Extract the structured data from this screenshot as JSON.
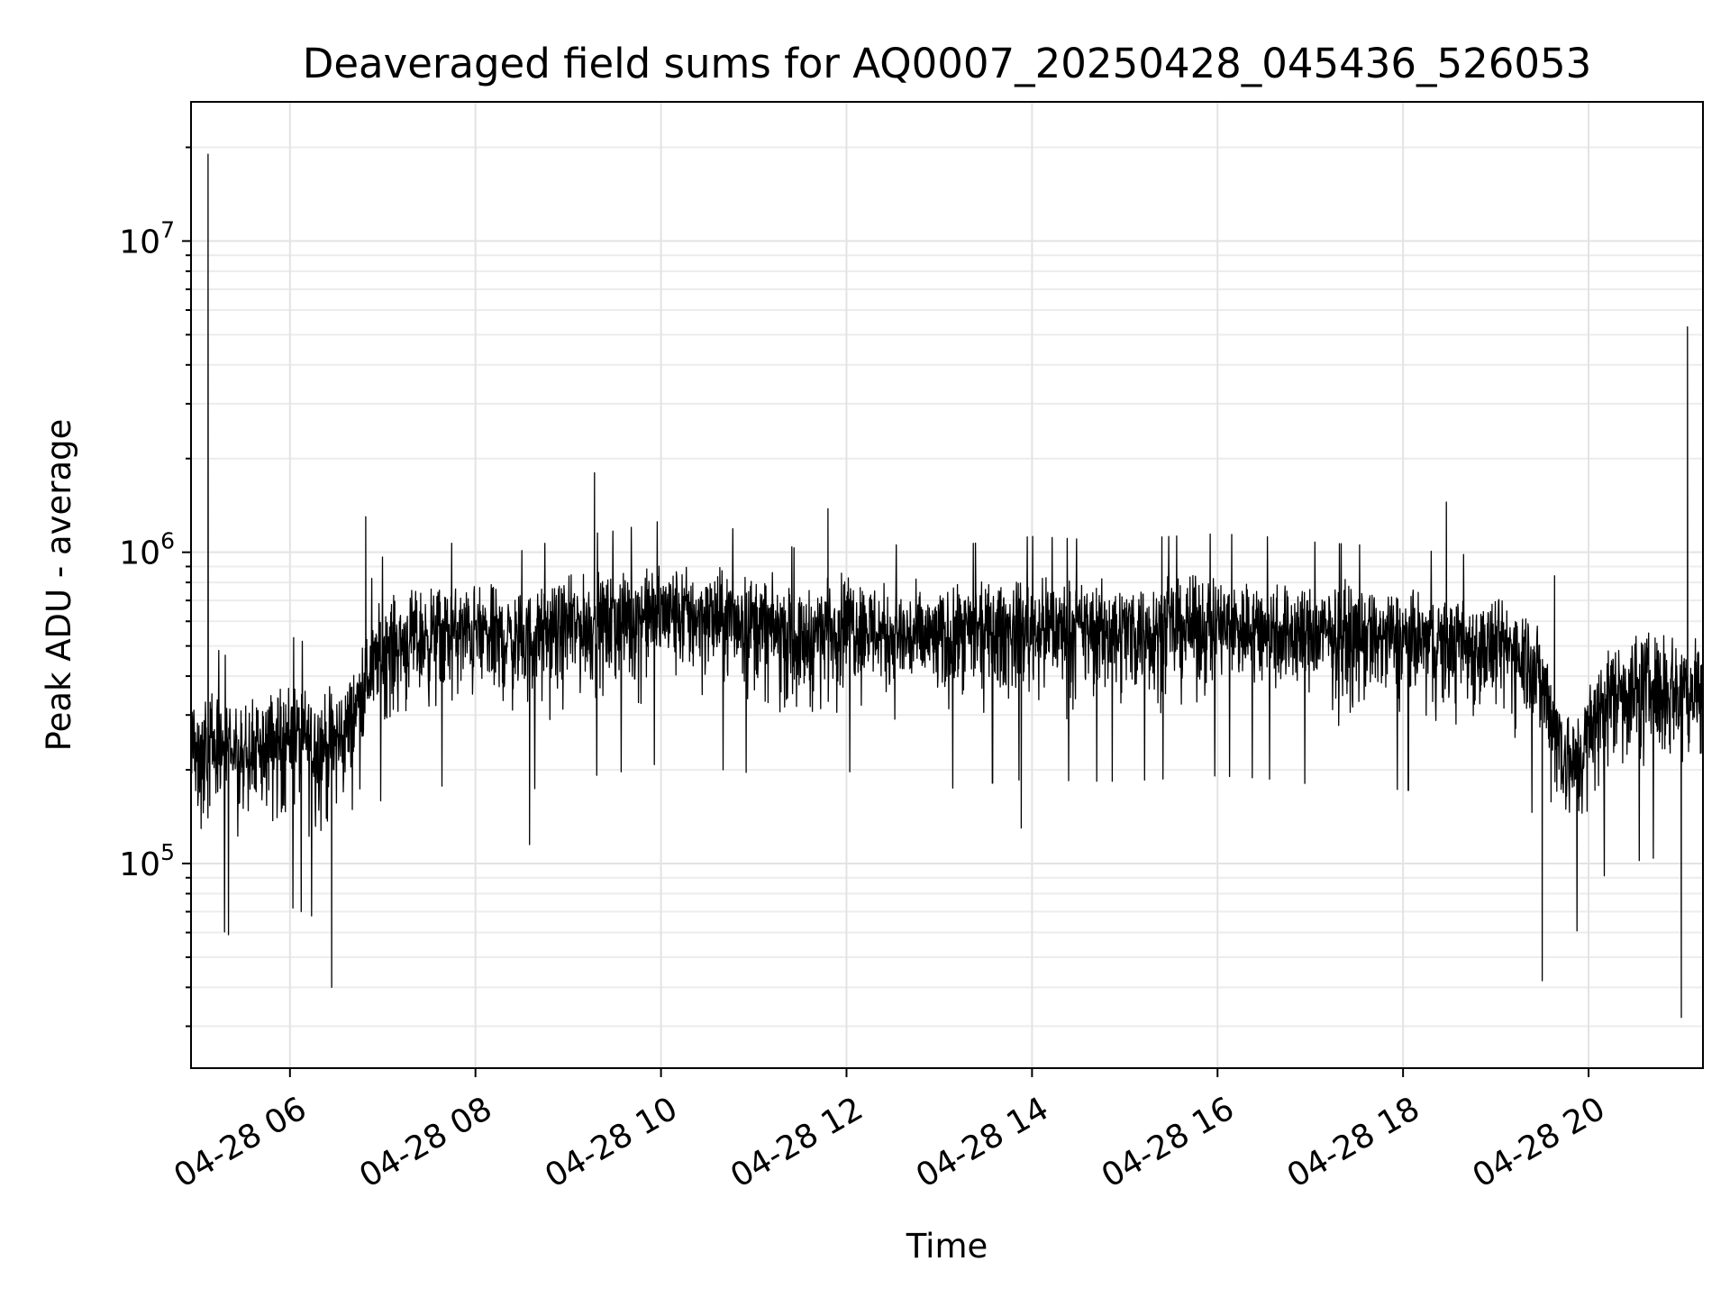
{
  "chart_data": {
    "type": "line",
    "title": "Deaveraged field sums for AQ0007_20250428_045436_526053",
    "xlabel": "Time",
    "ylabel": "Peak ADU - average",
    "x_range": [
      "2025-04-28 04:56",
      "2025-04-28 21:14"
    ],
    "y_scale": "log",
    "ylim": [
      22000,
      28000000
    ],
    "grid": true,
    "line_color": "#000000",
    "x_ticks": [
      {
        "t": "2025-04-28 06:00",
        "label": "04-28 06"
      },
      {
        "t": "2025-04-28 08:00",
        "label": "04-28 08"
      },
      {
        "t": "2025-04-28 10:00",
        "label": "04-28 10"
      },
      {
        "t": "2025-04-28 12:00",
        "label": "04-28 12"
      },
      {
        "t": "2025-04-28 14:00",
        "label": "04-28 14"
      },
      {
        "t": "2025-04-28 16:00",
        "label": "04-28 16"
      },
      {
        "t": "2025-04-28 18:00",
        "label": "04-28 18"
      },
      {
        "t": "2025-04-28 20:00",
        "label": "04-28 20"
      }
    ],
    "y_ticks": [
      {
        "value": 100000,
        "base": "10",
        "exp": "5"
      },
      {
        "value": 1000000,
        "base": "10",
        "exp": "6"
      },
      {
        "value": 10000000,
        "base": "10",
        "exp": "7"
      }
    ],
    "series": [
      {
        "x": [
          "2025-04-28 05:00",
          "2025-04-28 05:10",
          "2025-04-28 05:20",
          "2025-04-28 05:30",
          "2025-04-28 05:40",
          "2025-04-28 05:50",
          "2025-04-28 06:00",
          "2025-04-28 06:10",
          "2025-04-28 06:20",
          "2025-04-28 06:30",
          "2025-04-28 06:40",
          "2025-04-28 06:50",
          "2025-04-28 07:00",
          "2025-04-28 07:30",
          "2025-04-28 08:00",
          "2025-04-28 08:30",
          "2025-04-28 09:00",
          "2025-04-28 09:30",
          "2025-04-28 10:00",
          "2025-04-28 10:30",
          "2025-04-28 11:00",
          "2025-04-28 11:30",
          "2025-04-28 12:00",
          "2025-04-28 12:30",
          "2025-04-28 13:00",
          "2025-04-28 13:30",
          "2025-04-28 14:00",
          "2025-04-28 14:30",
          "2025-04-28 15:00",
          "2025-04-28 15:30",
          "2025-04-28 16:00",
          "2025-04-28 16:30",
          "2025-04-28 17:00",
          "2025-04-28 17:30",
          "2025-04-28 18:00",
          "2025-04-28 18:30",
          "2025-04-28 19:00",
          "2025-04-28 19:20",
          "2025-04-28 19:30",
          "2025-04-28 19:40",
          "2025-04-28 19:50",
          "2025-04-28 20:00",
          "2025-04-28 20:10",
          "2025-04-28 20:20",
          "2025-04-28 20:30",
          "2025-04-28 20:40",
          "2025-04-28 20:50",
          "2025-04-28 21:00",
          "2025-04-28 21:10"
        ],
        "y": [
          180000,
          190000,
          175000,
          170000,
          185000,
          200000,
          215000,
          205000,
          195000,
          200000,
          250000,
          340000,
          430000,
          470000,
          480000,
          450000,
          500000,
          520000,
          560000,
          540000,
          520000,
          450000,
          530000,
          470000,
          460000,
          480000,
          500000,
          490000,
          490000,
          500000,
          510000,
          500000,
          480000,
          470000,
          460000,
          440000,
          430000,
          420000,
          330000,
          220000,
          170000,
          210000,
          270000,
          300000,
          300000,
          310000,
          300000,
          300000,
          300000
        ],
        "spread_low": [
          0.45,
          0.45,
          0.45,
          0.45,
          0.45,
          0.45,
          0.45,
          0.45,
          0.45,
          0.45,
          0.5,
          0.55,
          0.5,
          0.5,
          0.5,
          0.5,
          0.5,
          0.5,
          0.5,
          0.5,
          0.5,
          0.5,
          0.5,
          0.5,
          0.5,
          0.5,
          0.5,
          0.5,
          0.5,
          0.5,
          0.5,
          0.5,
          0.5,
          0.5,
          0.5,
          0.5,
          0.5,
          0.5,
          0.5,
          0.45,
          0.45,
          0.45,
          0.45,
          0.45,
          0.45,
          0.45,
          0.45,
          0.45,
          0.45
        ],
        "spread_high": [
          2.0,
          2.1,
          2.1,
          2.1,
          2.1,
          2.0,
          2.0,
          2.0,
          2.0,
          2.0,
          1.8,
          1.8,
          1.8,
          1.8,
          1.8,
          1.8,
          1.8,
          1.8,
          1.8,
          1.8,
          1.8,
          1.8,
          1.8,
          1.8,
          1.8,
          1.8,
          1.8,
          1.8,
          1.8,
          1.8,
          1.8,
          1.8,
          1.8,
          1.8,
          1.8,
          1.8,
          1.8,
          1.8,
          1.8,
          1.9,
          1.9,
          2.0,
          2.0,
          2.0,
          2.0,
          2.0,
          2.0,
          2.0,
          2.0
        ]
      }
    ],
    "spikes": [
      {
        "x": "2025-04-28 05:07",
        "y": 19000000
      },
      {
        "x": "2025-04-28 06:27",
        "y": 40000
      },
      {
        "x": "2025-04-28 06:49",
        "y": 1300000
      },
      {
        "x": "2025-04-28 08:35",
        "y": 115000
      },
      {
        "x": "2025-04-28 09:17",
        "y": 1800000
      },
      {
        "x": "2025-04-28 11:48",
        "y": 1380000
      },
      {
        "x": "2025-04-28 13:53",
        "y": 130000
      },
      {
        "x": "2025-04-28 18:28",
        "y": 1450000
      },
      {
        "x": "2025-04-28 19:30",
        "y": 42000
      },
      {
        "x": "2025-04-28 19:38",
        "y": 840000
      },
      {
        "x": "2025-04-28 21:00",
        "y": 32000
      },
      {
        "x": "2025-04-28 21:04",
        "y": 5300000
      }
    ]
  }
}
